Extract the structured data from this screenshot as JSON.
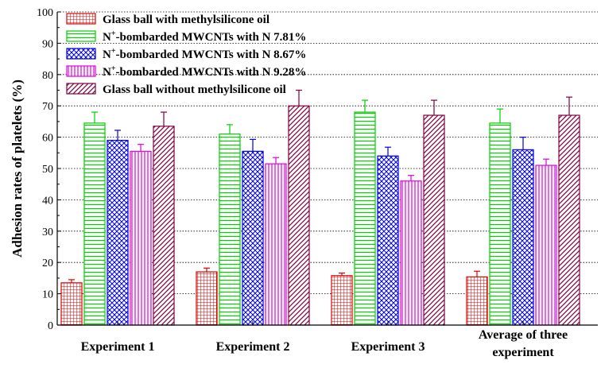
{
  "chart_data": {
    "type": "bar",
    "title": "",
    "ylabel": "Adhesion rates of platelets (%)",
    "xlabel": "",
    "ylim": [
      0,
      100
    ],
    "yticks": [
      0,
      10,
      20,
      30,
      40,
      50,
      60,
      70,
      80,
      90,
      100
    ],
    "grid": true,
    "legend_position": "top-left",
    "categories": [
      [
        "Experiment 1"
      ],
      [
        "Experiment 2"
      ],
      [
        "Experiment 3"
      ],
      [
        "Average of three",
        "experiment"
      ]
    ],
    "series": [
      {
        "name": "Glass ball with methylsilicone oil",
        "values": [
          13.5,
          17.0,
          15.8,
          15.4
        ],
        "errors": [
          1.0,
          1.2,
          0.8,
          1.8
        ],
        "color": "#e00000",
        "pattern": "grid"
      },
      {
        "name": "N+-bombarded MWCNTs with N 7.81%",
        "values": [
          64.5,
          61.0,
          68.0,
          64.5
        ],
        "errors": [
          3.5,
          3.0,
          3.8,
          4.5
        ],
        "color": "#00d000",
        "pattern": "horizontal"
      },
      {
        "name": "N+-bombarded MWCNTs with N 8.67%",
        "values": [
          59.0,
          55.5,
          54.0,
          56.0
        ],
        "errors": [
          3.2,
          3.8,
          2.8,
          4.0
        ],
        "color": "#0000e0",
        "pattern": "crosshatch"
      },
      {
        "name": "N+-bombarded MWCNTs with N 9.28%",
        "values": [
          55.5,
          51.5,
          46.0,
          51.0
        ],
        "errors": [
          2.2,
          2.0,
          1.8,
          2.0
        ],
        "color": "#e000e0",
        "pattern": "vertical"
      },
      {
        "name": "Glass ball without methylsilicone oil",
        "values": [
          63.5,
          70.0,
          67.0,
          67.0
        ],
        "errors": [
          4.5,
          5.0,
          4.8,
          5.8
        ],
        "color": "#800040",
        "pattern": "diagonal"
      }
    ]
  },
  "legend_labels": [
    {
      "pre": "Glass ball with methylsilicone oil",
      "sup": "",
      "post": ""
    },
    {
      "pre": "N",
      "sup": "+",
      "post": "-bombarded MWCNTs with N 7.81%"
    },
    {
      "pre": "N",
      "sup": "+",
      "post": "-bombarded MWCNTs with N 8.67%"
    },
    {
      "pre": "N",
      "sup": "+",
      "post": "-bombarded MWCNTs with N 9.28%"
    },
    {
      "pre": "Glass ball without methylsilicone oil",
      "sup": "",
      "post": ""
    }
  ]
}
